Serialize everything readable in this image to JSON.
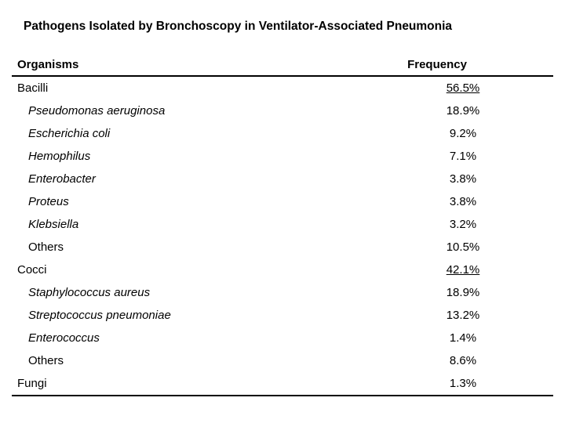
{
  "title": "Pathogens Isolated by Bronchoscopy in Ventilator-Associated Pneumonia",
  "colors": {
    "text": "#000000",
    "background": "#ffffff",
    "rule": "#000000"
  },
  "table": {
    "columns": [
      "Organisms",
      "Frequency"
    ],
    "rows": [
      {
        "organism": "Bacilli",
        "frequency": "56.5%",
        "indent": false,
        "italic": false,
        "underline": true
      },
      {
        "organism": "Pseudomonas aeruginosa",
        "frequency": "18.9%",
        "indent": true,
        "italic": true,
        "underline": false
      },
      {
        "organism": "Escherichia coli",
        "frequency": "9.2%",
        "indent": true,
        "italic": true,
        "underline": false
      },
      {
        "organism": "Hemophilus",
        "frequency": "7.1%",
        "indent": true,
        "italic": true,
        "underline": false
      },
      {
        "organism": "Enterobacter",
        "frequency": "3.8%",
        "indent": true,
        "italic": true,
        "underline": false
      },
      {
        "organism": "Proteus",
        "frequency": "3.8%",
        "indent": true,
        "italic": true,
        "underline": false
      },
      {
        "organism": "Klebsiella",
        "frequency": "3.2%",
        "indent": true,
        "italic": true,
        "underline": false
      },
      {
        "organism": "Others",
        "frequency": "10.5%",
        "indent": true,
        "italic": false,
        "underline": false
      },
      {
        "organism": "Cocci",
        "frequency": "42.1%",
        "indent": false,
        "italic": false,
        "underline": true
      },
      {
        "organism": "Staphylococcus aureus",
        "frequency": "18.9%",
        "indent": true,
        "italic": true,
        "underline": false
      },
      {
        "organism": "Streptococcus pneumoniae",
        "frequency": "13.2%",
        "indent": true,
        "italic": true,
        "underline": false
      },
      {
        "organism": "Enterococcus",
        "frequency": "1.4%",
        "indent": true,
        "italic": true,
        "underline": false
      },
      {
        "organism": "Others",
        "frequency": "8.6%",
        "indent": true,
        "italic": false,
        "underline": false
      },
      {
        "organism": "Fungi",
        "frequency": "1.3%",
        "indent": false,
        "italic": false,
        "underline": false
      }
    ]
  }
}
